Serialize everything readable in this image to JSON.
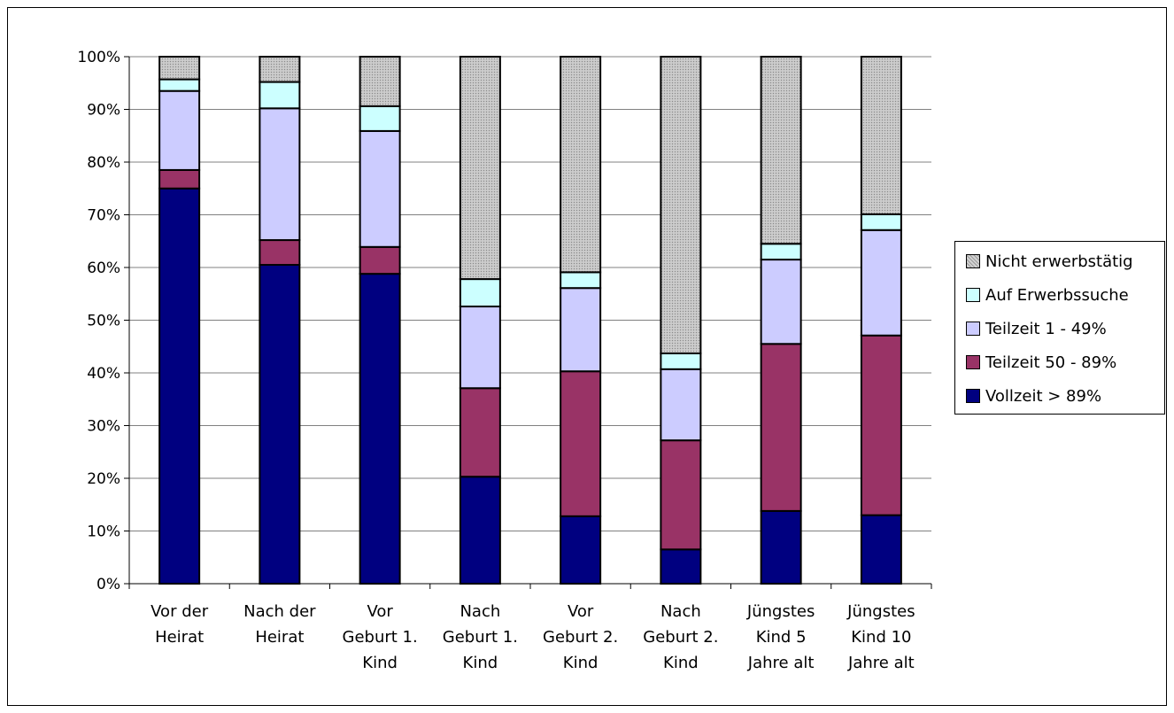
{
  "chart_data": {
    "type": "bar",
    "stacked": true,
    "categories": [
      [
        "Vor der",
        "Heirat"
      ],
      [
        "Nach der",
        "Heirat"
      ],
      [
        "Vor",
        "Geburt 1.",
        "Kind"
      ],
      [
        "Nach",
        "Geburt 1.",
        "Kind"
      ],
      [
        "Vor",
        "Geburt 2.",
        "Kind"
      ],
      [
        "Nach",
        "Geburt 2.",
        "Kind"
      ],
      [
        "Jüngstes",
        "Kind 5",
        "Jahre alt"
      ],
      [
        "Jüngstes",
        "Kind 10",
        "Jahre alt"
      ]
    ],
    "series": [
      {
        "name": "Vollzeit > 89%",
        "color": "#000080",
        "values": [
          75,
          60.5,
          58.8,
          20.3,
          12.8,
          6.5,
          13.8,
          13
        ]
      },
      {
        "name": "Teilzeit 50 - 89%",
        "color": "#993366",
        "values": [
          3.5,
          4.7,
          5.1,
          16.8,
          27.5,
          20.7,
          31.7,
          34.1
        ]
      },
      {
        "name": "Teilzeit 1 - 49%",
        "color": "#CCCCFF",
        "values": [
          15,
          25,
          22,
          15.5,
          15.8,
          13.5,
          16,
          20
        ]
      },
      {
        "name": "Auf Erwerbssuche",
        "color": "#CCFFFF",
        "values": [
          2.2,
          5,
          4.7,
          5.2,
          3,
          3,
          3,
          3
        ]
      },
      {
        "name": "Nicht erwerbstätig",
        "color": "#C0C0C0",
        "pattern": "dotted-gray",
        "values": [
          4.3,
          4.8,
          9.4,
          42.2,
          40.9,
          56.3,
          35.5,
          29.9
        ]
      }
    ],
    "yticks": [
      "0%",
      "10%",
      "20%",
      "30%",
      "40%",
      "50%",
      "60%",
      "70%",
      "80%",
      "90%",
      "100%"
    ],
    "ylim": [
      0,
      100
    ],
    "grid": true,
    "legend_position": "right",
    "legend_order": [
      "Nicht erwerbstätig",
      "Auf Erwerbssuche",
      "Teilzeit 1 - 49%",
      "Teilzeit 50 - 89%",
      "Vollzeit > 89%"
    ],
    "title": "",
    "xlabel": "",
    "ylabel": ""
  }
}
